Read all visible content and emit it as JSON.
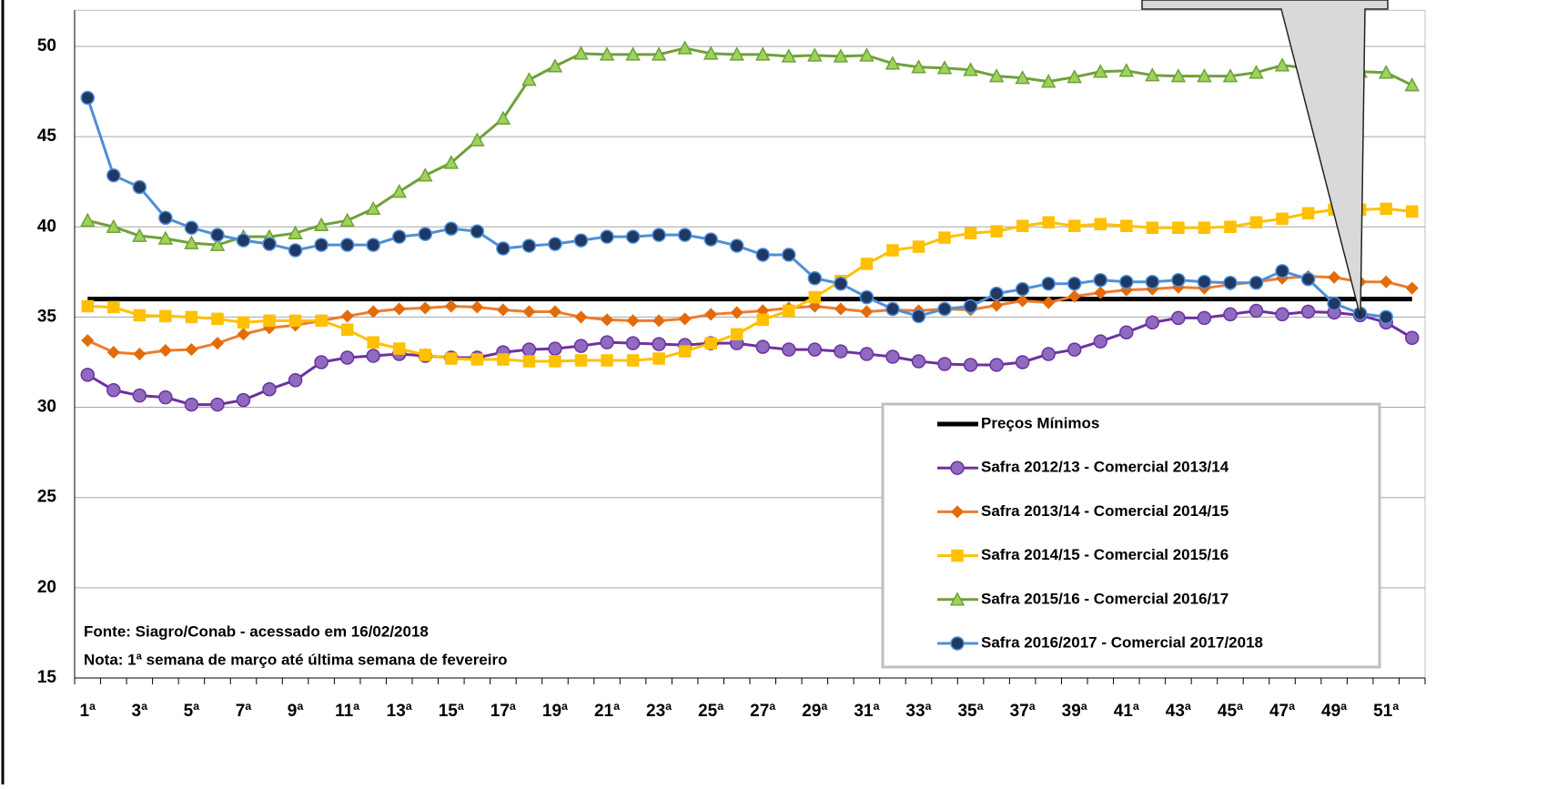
{
  "chart_data": {
    "type": "line",
    "categories": [
      "1ª",
      null,
      "3ª",
      null,
      "5ª",
      null,
      "7ª",
      null,
      "9ª",
      null,
      "11ª",
      null,
      "13ª",
      null,
      "15ª",
      null,
      "17ª",
      null,
      "19ª",
      null,
      "21ª",
      null,
      "23ª",
      null,
      "25ª",
      null,
      "27ª",
      null,
      "29ª",
      null,
      "31ª",
      null,
      "33ª",
      null,
      "35ª",
      null,
      "37ª",
      null,
      "39ª",
      null,
      "41ª",
      null,
      "43ª",
      null,
      "45ª",
      null,
      "47ª",
      null,
      "49ª",
      null,
      "51ª",
      null
    ],
    "ylim": [
      15,
      52
    ],
    "yticks": [
      15,
      20,
      25,
      30,
      35,
      40,
      45,
      50
    ],
    "grid": true,
    "series": [
      {
        "name": "Preços Mínimos",
        "color": "#000000",
        "marker": "none",
        "marker_color": "#000000",
        "values": [
          36,
          36,
          36,
          36,
          36,
          36,
          36,
          36,
          36,
          36,
          36,
          36,
          36,
          36,
          36,
          36,
          36,
          36,
          36,
          36,
          36,
          36,
          36,
          36,
          36,
          36,
          36,
          36,
          36,
          36,
          36,
          36,
          36,
          36,
          36,
          36,
          36,
          36,
          36,
          36,
          36,
          36,
          36,
          36,
          36,
          36,
          36,
          36,
          36,
          36,
          36,
          36
        ]
      },
      {
        "name": "Safra 2012/13 - Comercial 2013/14",
        "color": "#7030a0",
        "marker": "circle",
        "marker_color": "#8e6bbf",
        "values": [
          31.8,
          30.95,
          30.65,
          30.55,
          30.15,
          30.15,
          30.4,
          31.0,
          31.5,
          32.5,
          32.75,
          32.85,
          32.95,
          32.85,
          32.75,
          32.75,
          33.05,
          33.2,
          33.25,
          33.4,
          33.6,
          33.55,
          33.5,
          33.45,
          33.55,
          33.55,
          33.35,
          33.2,
          33.2,
          33.1,
          32.95,
          32.8,
          32.55,
          32.4,
          32.35,
          32.35,
          32.5,
          32.95,
          33.2,
          33.65,
          34.15,
          34.7,
          34.95,
          34.95,
          35.15,
          35.35,
          35.15,
          35.3,
          35.25,
          35.1,
          34.7,
          33.85
        ]
      },
      {
        "name": "Safra 2013/14 - Comercial 2014/15",
        "color": "#ed7d31",
        "marker": "diamond",
        "marker_color": "#e36c0a",
        "values": [
          33.7,
          33.05,
          32.95,
          33.15,
          33.2,
          33.55,
          34.05,
          34.4,
          34.55,
          34.8,
          35.05,
          35.3,
          35.45,
          35.5,
          35.6,
          35.55,
          35.4,
          35.3,
          35.3,
          35.0,
          34.85,
          34.8,
          34.8,
          34.9,
          35.15,
          35.25,
          35.35,
          35.5,
          35.6,
          35.45,
          35.3,
          35.4,
          35.35,
          35.45,
          35.4,
          35.65,
          35.9,
          35.8,
          36.15,
          36.35,
          36.5,
          36.55,
          36.65,
          36.6,
          36.8,
          36.95,
          37.15,
          37.25,
          37.2,
          36.95,
          36.95,
          36.6
        ]
      },
      {
        "name": "Safra 2014/15 - Comercial 2015/16",
        "color": "#ffc000",
        "marker": "square",
        "marker_color": "#ffc000",
        "values": [
          35.6,
          35.55,
          35.1,
          35.05,
          35.0,
          34.9,
          34.7,
          34.8,
          34.8,
          34.8,
          34.3,
          33.6,
          33.25,
          32.9,
          32.7,
          32.65,
          32.65,
          32.55,
          32.55,
          32.6,
          32.6,
          32.6,
          32.7,
          33.1,
          33.55,
          34.05,
          34.85,
          35.35,
          36.1,
          37.0,
          37.95,
          38.7,
          38.9,
          39.4,
          39.65,
          39.75,
          40.05,
          40.25,
          40.05,
          40.15,
          40.05,
          39.95,
          39.95,
          39.95,
          40.0,
          40.25,
          40.45,
          40.75,
          40.95,
          40.95,
          41.0,
          40.85
        ]
      },
      {
        "name": "Safra 2015/16 - Comercial 2016/17",
        "color": "#70a03a",
        "marker": "triangle",
        "marker_color": "#9bd35b",
        "values": [
          40.35,
          40.0,
          39.5,
          39.35,
          39.1,
          39.0,
          39.45,
          39.45,
          39.65,
          40.1,
          40.35,
          41.0,
          41.95,
          42.85,
          43.55,
          44.8,
          46.0,
          48.15,
          48.9,
          49.6,
          49.55,
          49.55,
          49.55,
          49.9,
          49.6,
          49.55,
          49.55,
          49.45,
          49.5,
          49.45,
          49.5,
          49.05,
          48.85,
          48.8,
          48.7,
          48.35,
          48.25,
          48.05,
          48.3,
          48.6,
          48.65,
          48.4,
          48.35,
          48.35,
          48.35,
          48.55,
          48.95,
          48.8,
          48.6,
          48.6,
          48.55,
          47.85
        ]
      },
      {
        "name": "Safra 2016/2017 - Comercial 2017/2018",
        "color": "#4f8fd8",
        "marker": "circle",
        "marker_color": "#1f3864",
        "values": [
          47.15,
          42.85,
          42.2,
          40.5,
          39.95,
          39.55,
          39.25,
          39.05,
          38.7,
          39.0,
          39.0,
          39.0,
          39.45,
          39.6,
          39.9,
          39.75,
          38.8,
          38.95,
          39.05,
          39.25,
          39.45,
          39.45,
          39.55,
          39.55,
          39.3,
          38.95,
          38.45,
          38.45,
          37.15,
          36.85,
          36.1,
          35.45,
          35.05,
          35.45,
          35.6,
          36.3,
          36.55,
          36.85,
          36.85,
          37.05,
          36.95,
          36.95,
          37.05,
          36.95,
          36.9,
          36.9,
          37.55,
          37.1,
          35.75,
          35.2,
          35.0,
          null
        ]
      }
    ],
    "annotations": [
      "Fonte: Siagro/Conab - acessado em 16/02/2018",
      "Nota: 1ª semana de março até última semana de fevereiro"
    ]
  }
}
